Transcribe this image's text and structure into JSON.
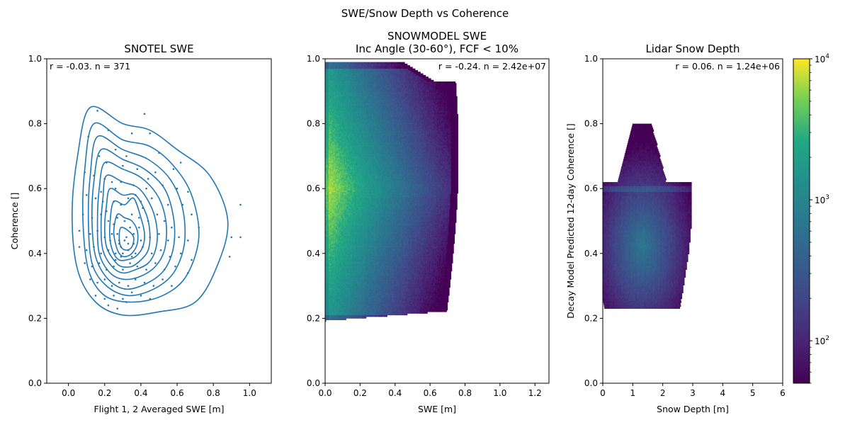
{
  "figure": {
    "suptitle": "SWE/Snow Depth vs Coherence"
  },
  "chart_data": [
    {
      "type": "scatter",
      "title": "SNOTEL SWE",
      "subtitle": "",
      "xlabel": "Flight 1, 2 Averaged SWE [m]",
      "ylabel": "Coherence []",
      "xlim": [
        -0.12,
        1.12
      ],
      "ylim": [
        0.0,
        1.0
      ],
      "xticks": [
        0.0,
        0.2,
        0.4,
        0.6,
        0.8,
        1.0
      ],
      "xtick_labels": [
        "0.0",
        "0.2",
        "0.4",
        "0.6",
        "0.8",
        "1.0"
      ],
      "yticks": [
        0.0,
        0.2,
        0.4,
        0.6,
        0.8,
        1.0
      ],
      "ytick_labels": [
        "0.0",
        "0.2",
        "0.4",
        "0.6",
        "0.8",
        "1.0"
      ],
      "annotation": "r = -0.03. n = 371",
      "color": "#1f77b4",
      "grid": false,
      "points": [
        [
          0.16,
          0.84
        ],
        [
          0.42,
          0.83
        ],
        [
          0.11,
          0.76
        ],
        [
          0.22,
          0.78
        ],
        [
          0.35,
          0.77
        ],
        [
          0.45,
          0.77
        ],
        [
          0.5,
          0.71
        ],
        [
          0.17,
          0.7
        ],
        [
          0.26,
          0.72
        ],
        [
          0.32,
          0.7
        ],
        [
          0.21,
          0.68
        ],
        [
          0.3,
          0.67
        ],
        [
          0.38,
          0.66
        ],
        [
          0.48,
          0.65
        ],
        [
          0.58,
          0.66
        ],
        [
          0.62,
          0.68
        ],
        [
          0.09,
          0.65
        ],
        [
          0.14,
          0.64
        ],
        [
          0.2,
          0.63
        ],
        [
          0.24,
          0.62
        ],
        [
          0.29,
          0.62
        ],
        [
          0.36,
          0.61
        ],
        [
          0.43,
          0.6
        ],
        [
          0.52,
          0.61
        ],
        [
          0.6,
          0.6
        ],
        [
          0.66,
          0.59
        ],
        [
          0.1,
          0.58
        ],
        [
          0.15,
          0.57
        ],
        [
          0.19,
          0.56
        ],
        [
          0.25,
          0.56
        ],
        [
          0.33,
          0.57
        ],
        [
          0.4,
          0.56
        ],
        [
          0.46,
          0.57
        ],
        [
          0.55,
          0.55
        ],
        [
          0.63,
          0.55
        ],
        [
          0.68,
          0.52
        ],
        [
          0.08,
          0.52
        ],
        [
          0.13,
          0.51
        ],
        [
          0.18,
          0.52
        ],
        [
          0.22,
          0.5
        ],
        [
          0.27,
          0.51
        ],
        [
          0.31,
          0.5
        ],
        [
          0.35,
          0.52
        ],
        [
          0.39,
          0.51
        ],
        [
          0.44,
          0.5
        ],
        [
          0.49,
          0.52
        ],
        [
          0.53,
          0.5
        ],
        [
          0.57,
          0.48
        ],
        [
          0.72,
          0.48
        ],
        [
          0.06,
          0.47
        ],
        [
          0.12,
          0.46
        ],
        [
          0.16,
          0.47
        ],
        [
          0.2,
          0.45
        ],
        [
          0.24,
          0.46
        ],
        [
          0.28,
          0.44
        ],
        [
          0.32,
          0.45
        ],
        [
          0.36,
          0.46
        ],
        [
          0.4,
          0.44
        ],
        [
          0.45,
          0.45
        ],
        [
          0.5,
          0.46
        ],
        [
          0.55,
          0.44
        ],
        [
          0.61,
          0.45
        ],
        [
          0.66,
          0.44
        ],
        [
          0.9,
          0.45
        ],
        [
          0.95,
          0.45
        ],
        [
          0.95,
          0.55
        ],
        [
          0.06,
          0.42
        ],
        [
          0.1,
          0.41
        ],
        [
          0.14,
          0.42
        ],
        [
          0.18,
          0.4
        ],
        [
          0.22,
          0.41
        ],
        [
          0.26,
          0.4
        ],
        [
          0.29,
          0.42
        ],
        [
          0.33,
          0.41
        ],
        [
          0.37,
          0.4
        ],
        [
          0.41,
          0.42
        ],
        [
          0.46,
          0.4
        ],
        [
          0.51,
          0.41
        ],
        [
          0.56,
          0.39
        ],
        [
          0.62,
          0.4
        ],
        [
          0.68,
          0.38
        ],
        [
          0.89,
          0.39
        ],
        [
          0.09,
          0.37
        ],
        [
          0.13,
          0.36
        ],
        [
          0.17,
          0.37
        ],
        [
          0.21,
          0.35
        ],
        [
          0.25,
          0.36
        ],
        [
          0.3,
          0.35
        ],
        [
          0.34,
          0.37
        ],
        [
          0.38,
          0.36
        ],
        [
          0.43,
          0.35
        ],
        [
          0.48,
          0.37
        ],
        [
          0.53,
          0.35
        ],
        [
          0.59,
          0.36
        ],
        [
          0.66,
          0.34
        ],
        [
          0.12,
          0.32
        ],
        [
          0.16,
          0.31
        ],
        [
          0.2,
          0.32
        ],
        [
          0.24,
          0.3
        ],
        [
          0.28,
          0.31
        ],
        [
          0.33,
          0.3
        ],
        [
          0.37,
          0.32
        ],
        [
          0.42,
          0.31
        ],
        [
          0.47,
          0.3
        ],
        [
          0.52,
          0.32
        ],
        [
          0.57,
          0.3
        ],
        [
          0.15,
          0.27
        ],
        [
          0.2,
          0.26
        ],
        [
          0.25,
          0.27
        ],
        [
          0.3,
          0.26
        ],
        [
          0.35,
          0.28
        ],
        [
          0.4,
          0.27
        ],
        [
          0.45,
          0.26
        ],
        [
          0.22,
          0.24
        ],
        [
          0.27,
          0.23
        ],
        [
          0.32,
          0.25
        ],
        [
          0.28,
          0.43
        ],
        [
          0.31,
          0.44
        ],
        [
          0.26,
          0.38
        ],
        [
          0.35,
          0.39
        ],
        [
          0.29,
          0.39
        ],
        [
          0.33,
          0.43
        ],
        [
          0.23,
          0.44
        ],
        [
          0.27,
          0.46
        ],
        [
          0.36,
          0.43
        ],
        [
          0.3,
          0.4
        ],
        [
          0.34,
          0.48
        ],
        [
          0.25,
          0.49
        ],
        [
          0.39,
          0.48
        ],
        [
          0.21,
          0.53
        ],
        [
          0.41,
          0.54
        ],
        [
          0.29,
          0.55
        ],
        [
          0.37,
          0.58
        ],
        [
          0.18,
          0.59
        ],
        [
          0.44,
          0.63
        ],
        [
          0.26,
          0.6
        ]
      ],
      "kde_levels": [
        [
          [
            0.12,
            0.85
          ],
          [
            0.3,
            0.8
          ],
          [
            0.45,
            0.78
          ],
          [
            0.6,
            0.72
          ],
          [
            0.78,
            0.64
          ],
          [
            0.88,
            0.5
          ],
          [
            0.82,
            0.36
          ],
          [
            0.7,
            0.25
          ],
          [
            0.5,
            0.22
          ],
          [
            0.3,
            0.21
          ],
          [
            0.15,
            0.25
          ],
          [
            0.05,
            0.35
          ],
          [
            0.02,
            0.52
          ],
          [
            0.05,
            0.7
          ]
        ],
        [
          [
            0.14,
            0.8
          ],
          [
            0.3,
            0.75
          ],
          [
            0.45,
            0.73
          ],
          [
            0.58,
            0.67
          ],
          [
            0.68,
            0.58
          ],
          [
            0.72,
            0.45
          ],
          [
            0.65,
            0.33
          ],
          [
            0.52,
            0.27
          ],
          [
            0.35,
            0.25
          ],
          [
            0.2,
            0.27
          ],
          [
            0.11,
            0.35
          ],
          [
            0.08,
            0.5
          ],
          [
            0.09,
            0.66
          ]
        ],
        [
          [
            0.16,
            0.76
          ],
          [
            0.3,
            0.72
          ],
          [
            0.44,
            0.69
          ],
          [
            0.56,
            0.63
          ],
          [
            0.63,
            0.54
          ],
          [
            0.64,
            0.43
          ],
          [
            0.58,
            0.34
          ],
          [
            0.47,
            0.29
          ],
          [
            0.33,
            0.27
          ],
          [
            0.21,
            0.3
          ],
          [
            0.13,
            0.37
          ],
          [
            0.11,
            0.5
          ],
          [
            0.12,
            0.64
          ]
        ],
        [
          [
            0.18,
            0.72
          ],
          [
            0.3,
            0.69
          ],
          [
            0.42,
            0.66
          ],
          [
            0.53,
            0.6
          ],
          [
            0.58,
            0.51
          ],
          [
            0.58,
            0.42
          ],
          [
            0.53,
            0.35
          ],
          [
            0.44,
            0.31
          ],
          [
            0.32,
            0.29
          ],
          [
            0.22,
            0.32
          ],
          [
            0.15,
            0.39
          ],
          [
            0.13,
            0.5
          ],
          [
            0.14,
            0.62
          ]
        ],
        [
          [
            0.2,
            0.68
          ],
          [
            0.3,
            0.66
          ],
          [
            0.41,
            0.63
          ],
          [
            0.5,
            0.57
          ],
          [
            0.54,
            0.49
          ],
          [
            0.53,
            0.41
          ],
          [
            0.48,
            0.36
          ],
          [
            0.4,
            0.33
          ],
          [
            0.31,
            0.32
          ],
          [
            0.23,
            0.34
          ],
          [
            0.17,
            0.4
          ],
          [
            0.16,
            0.5
          ],
          [
            0.17,
            0.6
          ]
        ],
        [
          [
            0.21,
            0.64
          ],
          [
            0.3,
            0.62
          ],
          [
            0.39,
            0.6
          ],
          [
            0.46,
            0.54
          ],
          [
            0.49,
            0.47
          ],
          [
            0.48,
            0.41
          ],
          [
            0.44,
            0.37
          ],
          [
            0.37,
            0.35
          ],
          [
            0.3,
            0.34
          ],
          [
            0.24,
            0.36
          ],
          [
            0.19,
            0.41
          ],
          [
            0.18,
            0.49
          ],
          [
            0.19,
            0.57
          ]
        ],
        [
          [
            0.23,
            0.6
          ],
          [
            0.3,
            0.58
          ],
          [
            0.37,
            0.58
          ],
          [
            0.43,
            0.52
          ],
          [
            0.45,
            0.46
          ],
          [
            0.44,
            0.41
          ],
          [
            0.4,
            0.38
          ],
          [
            0.35,
            0.36
          ],
          [
            0.29,
            0.36
          ],
          [
            0.25,
            0.38
          ],
          [
            0.21,
            0.42
          ],
          [
            0.2,
            0.48
          ],
          [
            0.21,
            0.55
          ]
        ],
        [
          [
            0.25,
            0.56
          ],
          [
            0.31,
            0.55
          ],
          [
            0.36,
            0.57
          ],
          [
            0.4,
            0.51
          ],
          [
            0.42,
            0.46
          ],
          [
            0.41,
            0.42
          ],
          [
            0.37,
            0.39
          ],
          [
            0.32,
            0.38
          ],
          [
            0.28,
            0.38
          ],
          [
            0.25,
            0.4
          ],
          [
            0.23,
            0.44
          ],
          [
            0.23,
            0.5
          ]
        ],
        [
          [
            0.27,
            0.52
          ],
          [
            0.31,
            0.51
          ],
          [
            0.35,
            0.5
          ],
          [
            0.38,
            0.47
          ],
          [
            0.38,
            0.43
          ],
          [
            0.35,
            0.4
          ],
          [
            0.31,
            0.39
          ],
          [
            0.28,
            0.4
          ],
          [
            0.26,
            0.43
          ],
          [
            0.25,
            0.47
          ]
        ],
        [
          [
            0.29,
            0.48
          ],
          [
            0.33,
            0.47
          ],
          [
            0.36,
            0.45
          ],
          [
            0.35,
            0.42
          ],
          [
            0.32,
            0.41
          ],
          [
            0.29,
            0.42
          ],
          [
            0.28,
            0.45
          ]
        ]
      ]
    },
    {
      "type": "heatmap",
      "title": "SNOWMODEL SWE",
      "subtitle": "Inc Angle (30-60°), FCF < 10%",
      "xlabel": "SWE [m]",
      "ylabel": "",
      "xlim": [
        0.0,
        1.28
      ],
      "ylim": [
        0.0,
        1.0
      ],
      "xticks": [
        0.0,
        0.2,
        0.4,
        0.6,
        0.8,
        1.0,
        1.2
      ],
      "xtick_labels": [
        "0.0",
        "0.2",
        "0.4",
        "0.6",
        "0.8",
        "1.0",
        "1.2"
      ],
      "yticks": [
        0.0,
        0.2,
        0.4,
        0.6,
        0.8,
        1.0
      ],
      "ytick_labels": [
        "0.0",
        "0.2",
        "0.4",
        "0.6",
        "0.8",
        "1.0"
      ],
      "annotation": "r = -0.24. n = 2.42e+07",
      "colormap": "viridis",
      "log_color_scale": true,
      "grid": false,
      "x_range": [
        0.0,
        0.76
      ],
      "y_range": [
        0.19,
        0.98
      ],
      "density_peak": {
        "x": 0.06,
        "y": 0.6
      }
    },
    {
      "type": "heatmap",
      "title": "Lidar Snow Depth",
      "subtitle": "",
      "xlabel": "Snow Depth [m]",
      "ylabel": "Decay Model Predicted 12-day Coherence []",
      "xlim": [
        0,
        6
      ],
      "ylim": [
        0.0,
        1.0
      ],
      "xticks": [
        0,
        1,
        2,
        3,
        4,
        5,
        6
      ],
      "xtick_labels": [
        "0",
        "1",
        "2",
        "3",
        "4",
        "5",
        "6"
      ],
      "yticks": [
        0.0,
        0.2,
        0.4,
        0.6,
        0.8,
        1.0
      ],
      "ytick_labels": [
        "0.0",
        "0.2",
        "0.4",
        "0.6",
        "0.8",
        "1.0"
      ],
      "annotation": "r = 0.06. n = 1.24e+06",
      "colormap": "viridis",
      "log_color_scale": true,
      "grid": false,
      "x_range": [
        0.0,
        3.0
      ],
      "y_range": [
        0.23,
        0.79
      ],
      "density_peak": {
        "x": 1.3,
        "y": 0.42
      },
      "colorbar": {
        "scale": "log",
        "range": [
          50,
          10000
        ],
        "major_ticks": [
          100,
          1000,
          10000
        ],
        "major_tick_labels": [
          "10",
          "10",
          "10"
        ],
        "major_tick_exponents": [
          "2",
          "3",
          "4"
        ]
      }
    }
  ]
}
